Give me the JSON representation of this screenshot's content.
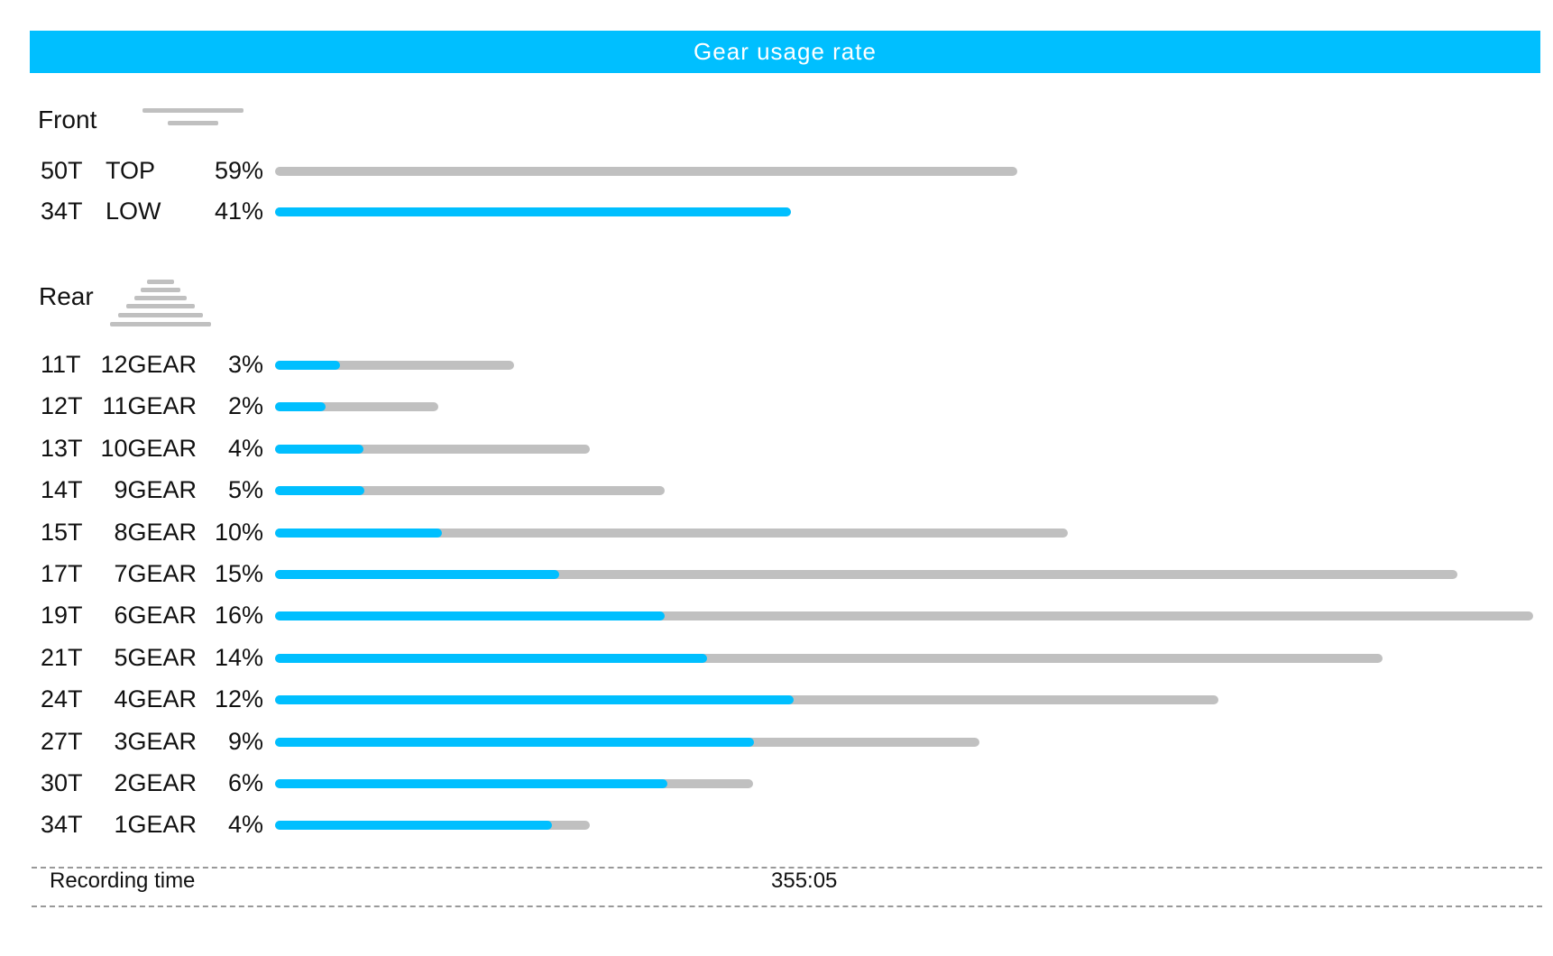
{
  "title": "Gear usage rate",
  "colors": {
    "accent": "#00bfff",
    "track": "#c0c0c0",
    "text": "#111111"
  },
  "front": {
    "label": "Front",
    "icon": "chainring-icon"
  },
  "rear": {
    "label": "Rear",
    "icon": "cassette-icon"
  },
  "footer": {
    "label": "Recording time",
    "value": "355:05"
  },
  "chart_data": {
    "type": "bar",
    "title": "Gear usage rate",
    "orientation": "horizontal",
    "front": [
      {
        "teeth": "50T",
        "name": "TOP",
        "pct_label": "59%",
        "value": 59,
        "track": 0.59,
        "fill": 0.0
      },
      {
        "teeth": "34T",
        "name": "LOW",
        "pct_label": "41%",
        "value": 41,
        "track": 0.41,
        "fill": 1.0
      }
    ],
    "rear": [
      {
        "teeth": "11T",
        "name": "12GEAR",
        "pct_label": "3%",
        "value": 3,
        "track": 0.19,
        "fill": 0.27
      },
      {
        "teeth": "12T",
        "name": "11GEAR",
        "pct_label": "2%",
        "value": 2,
        "track": 0.13,
        "fill": 0.31
      },
      {
        "teeth": "13T",
        "name": "10GEAR",
        "pct_label": "4%",
        "value": 4,
        "track": 0.25,
        "fill": 0.28
      },
      {
        "teeth": "14T",
        "name": "9GEAR",
        "pct_label": "5%",
        "value": 5,
        "track": 0.31,
        "fill": 0.23
      },
      {
        "teeth": "15T",
        "name": "8GEAR",
        "pct_label": "10%",
        "value": 10,
        "track": 0.63,
        "fill": 0.21
      },
      {
        "teeth": "17T",
        "name": "7GEAR",
        "pct_label": "15%",
        "value": 15,
        "track": 0.94,
        "fill": 0.24
      },
      {
        "teeth": "19T",
        "name": "6GEAR",
        "pct_label": "16%",
        "value": 16,
        "track": 1.0,
        "fill": 0.31
      },
      {
        "teeth": "21T",
        "name": "5GEAR",
        "pct_label": "14%",
        "value": 14,
        "track": 0.88,
        "fill": 0.39
      },
      {
        "teeth": "24T",
        "name": "4GEAR",
        "pct_label": "12%",
        "value": 12,
        "track": 0.75,
        "fill": 0.55
      },
      {
        "teeth": "27T",
        "name": "3GEAR",
        "pct_label": "9%",
        "value": 9,
        "track": 0.56,
        "fill": 0.68
      },
      {
        "teeth": "30T",
        "name": "2GEAR",
        "pct_label": "6%",
        "value": 6,
        "track": 0.38,
        "fill": 0.82
      },
      {
        "teeth": "34T",
        "name": "1GEAR",
        "pct_label": "4%",
        "value": 4,
        "track": 0.25,
        "fill": 0.88
      }
    ]
  }
}
